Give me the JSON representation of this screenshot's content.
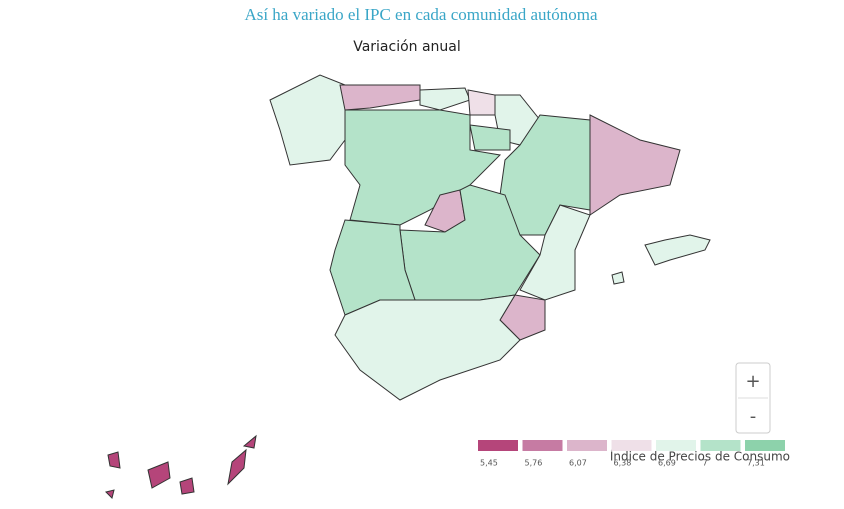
{
  "title": "Así ha variado el IPC en cada comunidad autónoma",
  "map": {
    "type": "choropleth",
    "subtitle": "Variación anual",
    "regions": [
      6.8,
      6.2,
      6.8,
      6.5,
      6.8,
      7.1,
      7.1,
      7.1,
      6.1,
      6.2,
      7.3,
      7.05,
      6.8,
      6.3,
      6.8,
      6.7,
      5.5
    ],
    "legend": {
      "title": "Índice de Precios de Consumo",
      "bins": [
        {
          "value": 5.45,
          "label": "5,45",
          "color": "#b5457a"
        },
        {
          "value": 5.76,
          "label": "5,76",
          "color": "#c67ba3"
        },
        {
          "value": 6.07,
          "label": "6,07",
          "color": "#dcb5cb"
        },
        {
          "value": 6.38,
          "label": "6,38",
          "color": "#efe0e8"
        },
        {
          "value": 6.69,
          "label": "6,69",
          "color": "#e1f4ea"
        },
        {
          "value": 7,
          "label": "7",
          "color": "#b4e3c9"
        },
        {
          "value": 7.31,
          "label": "7,31",
          "color": "#8dd2ab"
        }
      ]
    },
    "zoom": {
      "in": "+",
      "out": "-"
    }
  }
}
